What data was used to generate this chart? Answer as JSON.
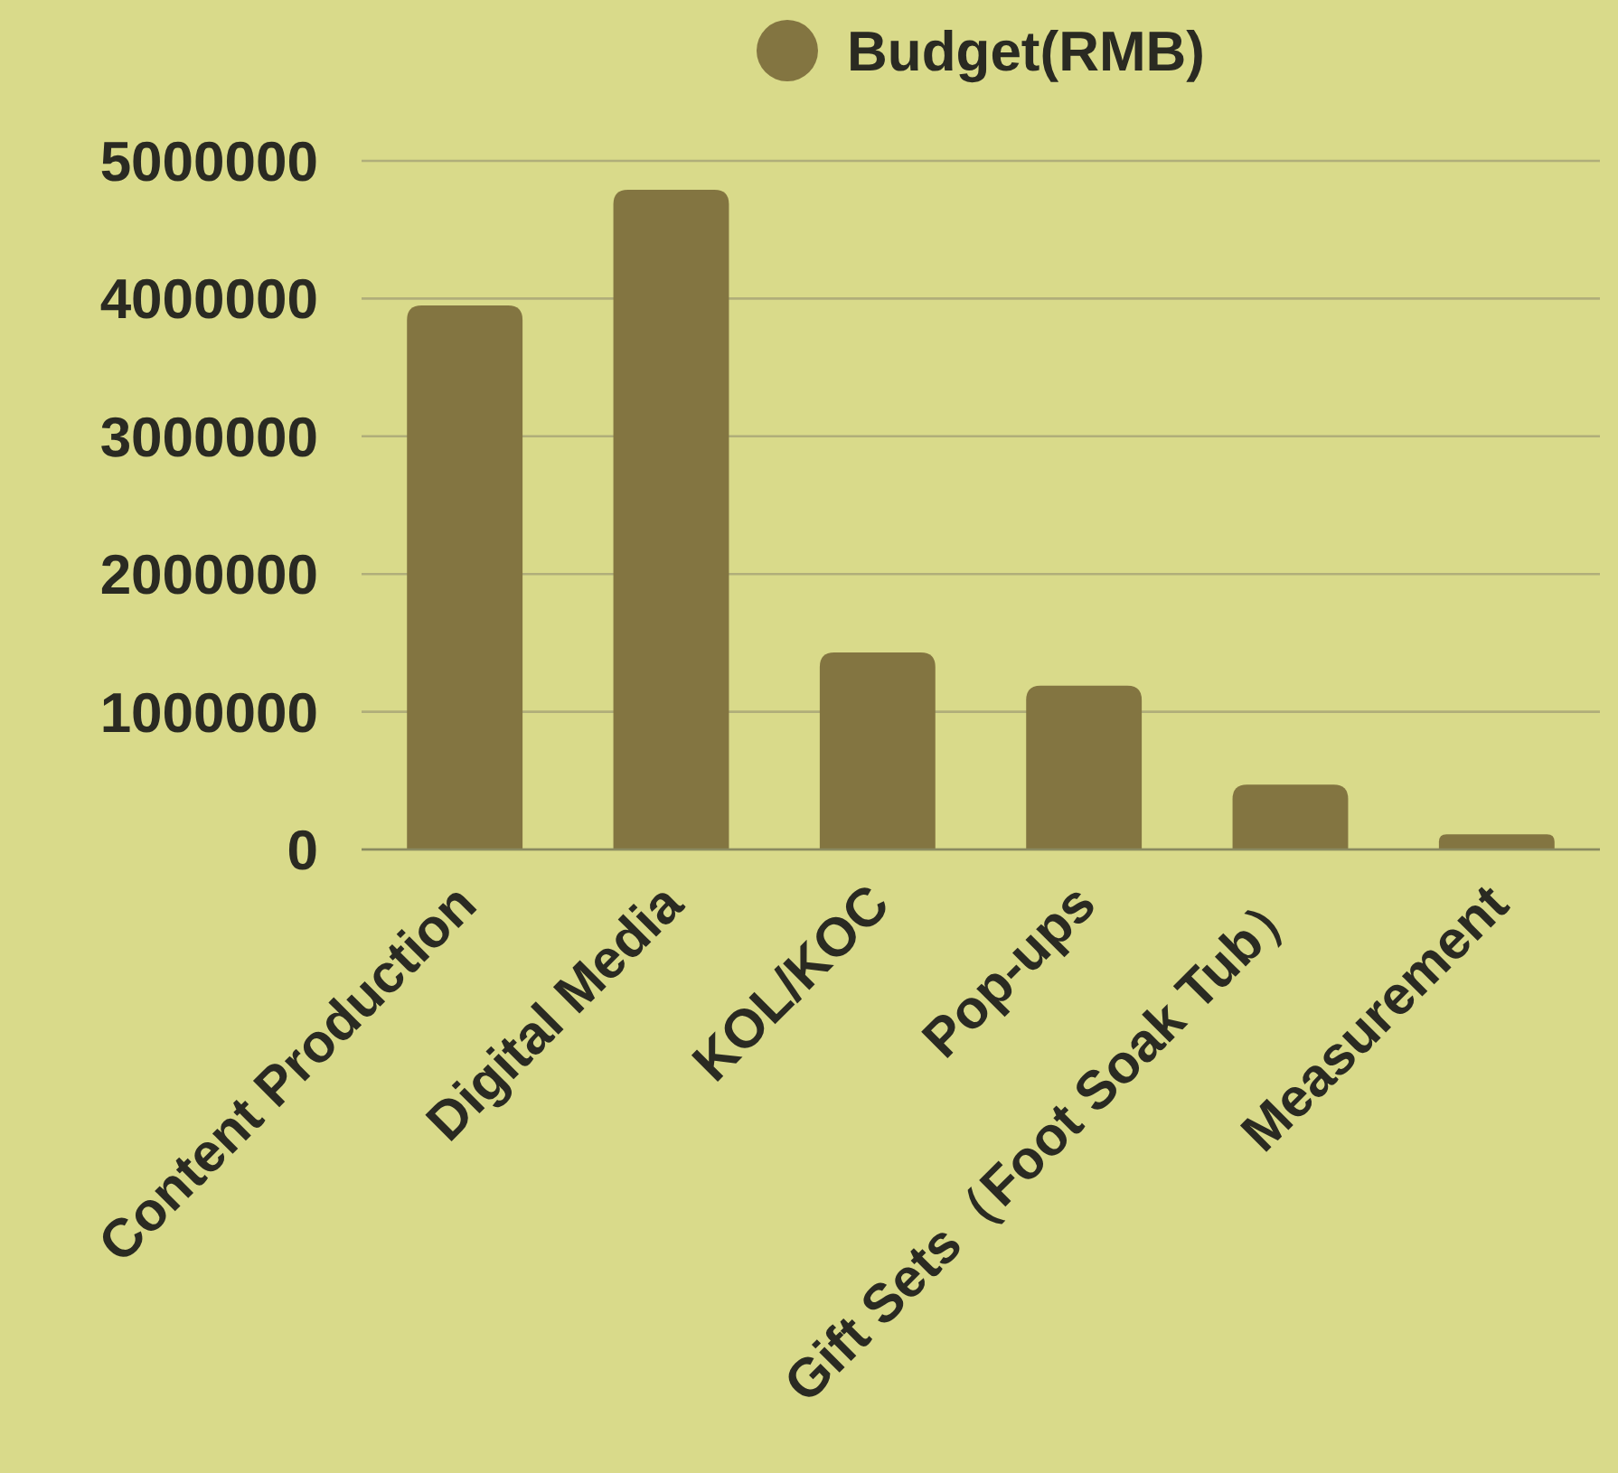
{
  "chart_data": {
    "type": "bar",
    "categories": [
      "Content Production",
      "Digital Media",
      "KOL/KOC",
      "Pop-ups",
      "Gift Sets（Foot Soak Tub）",
      "Measurement"
    ],
    "series": [
      {
        "name": "Budget(RMB)",
        "color": "#837541",
        "values": [
          3950000,
          4790000,
          1430000,
          1190000,
          470000,
          110000
        ]
      }
    ],
    "ylim": [
      0,
      5000000
    ],
    "yticks": [
      0,
      1000000,
      2000000,
      3000000,
      4000000,
      5000000
    ],
    "grid": "y",
    "legend": "top"
  }
}
